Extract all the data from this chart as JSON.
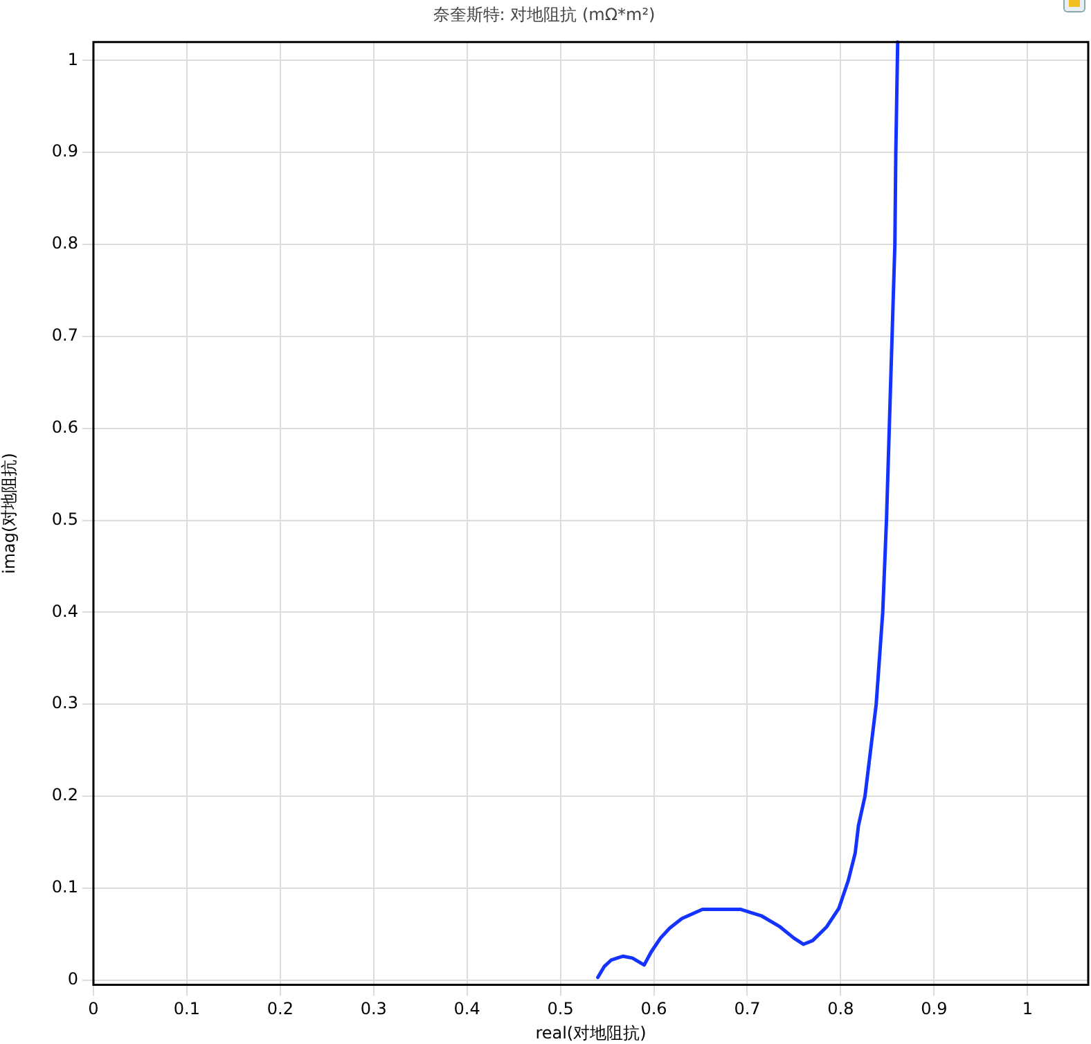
{
  "chart_data": {
    "type": "line",
    "title": "奈奎斯特: 对地阻抗 (mΩ*m²)",
    "xlabel": "real(对地阻抗)",
    "ylabel": "imag(对地阻抗)",
    "x": [
      0.54,
      0.547,
      0.5545,
      0.567,
      0.577,
      0.5896,
      0.597,
      0.607,
      0.617,
      0.63,
      0.652,
      0.6925,
      0.715,
      0.735,
      0.75,
      0.76,
      0.77,
      0.785,
      0.798,
      0.808,
      0.8155,
      0.819,
      0.826,
      0.838,
      0.845,
      0.849,
      0.852,
      0.855,
      0.858,
      0.859,
      0.861
    ],
    "series": [
      {
        "color": "#1533ff",
        "values": [
          0.003,
          0.015,
          0.022,
          0.026,
          0.024,
          0.0165,
          0.0305,
          0.0456,
          0.0567,
          0.067,
          0.077,
          0.077,
          0.07,
          0.058,
          0.0456,
          0.039,
          0.043,
          0.058,
          0.078,
          0.108,
          0.138,
          0.168,
          0.2,
          0.3,
          0.4,
          0.5,
          0.6,
          0.7,
          0.8,
          0.9,
          1.02
        ]
      }
    ],
    "xlim": [
      0,
      1.065
    ],
    "ylim": [
      -0.005,
      1.02
    ],
    "xticks": [
      0,
      0.1,
      0.2,
      0.3,
      0.4,
      0.5,
      0.6,
      0.7,
      0.8,
      0.9,
      1
    ],
    "yticks": [
      0,
      0.1,
      0.2,
      0.3,
      0.4,
      0.5,
      0.6,
      0.7,
      0.8,
      0.9,
      1
    ],
    "grid": true,
    "marker": "none",
    "line_style": "solid"
  }
}
